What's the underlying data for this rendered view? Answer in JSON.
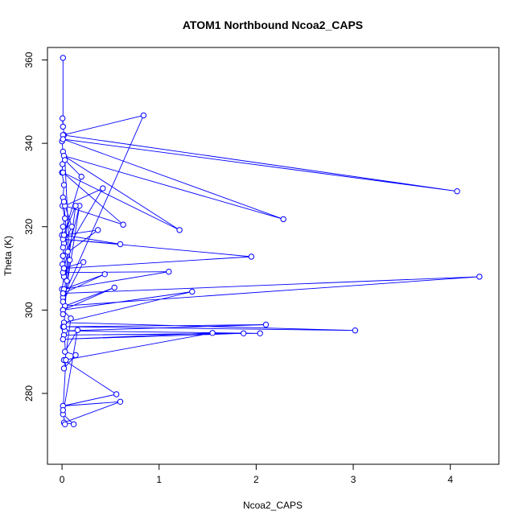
{
  "chart_data": {
    "type": "line",
    "title": "ATOM1 Northbound Ncoa2_CAPS",
    "xlabel": "Ncoa2_CAPS",
    "ylabel": "Theta (K)",
    "xlim": [
      -0.15,
      4.5
    ],
    "ylim": [
      263,
      363
    ],
    "x_ticks": [
      0,
      1,
      2,
      3,
      4
    ],
    "x_tick_labels": [
      "0",
      "1",
      "2",
      "3",
      "4"
    ],
    "y_ticks": [
      280,
      300,
      320,
      340,
      360
    ],
    "y_tick_labels": [
      "280",
      "300",
      "320",
      "340",
      "360"
    ],
    "grid": false,
    "legend": "none",
    "colors": {
      "series": "#0000ff",
      "axis": "#000000"
    },
    "series": [
      {
        "markers": "open-circle",
        "x": [
          0.01,
          0.01,
          0.005,
          0.02,
          0.0,
          0.01,
          0.005,
          0.0,
          0.02,
          0.01,
          0.005,
          0.03,
          0.01,
          0.0,
          0.02,
          0.01,
          0.005,
          0.02,
          0.0,
          0.01,
          0.84,
          0.01,
          4.07,
          0.01,
          2.28,
          0.02,
          1.21,
          0.01,
          0.63,
          0.03,
          0.42,
          0.01,
          0.37,
          0.02,
          0.6,
          0.01,
          1.95,
          0.02,
          0.01,
          1.1,
          0.02,
          0.44,
          0.01,
          4.3,
          0.03,
          0.54,
          0.01,
          1.34,
          0.02,
          3.02,
          0.01,
          2.1,
          0.03,
          2.04,
          0.02,
          1.87,
          0.01,
          1.55,
          0.02,
          0.56,
          0.01,
          0.6,
          0.02,
          0.12,
          0.01,
          0.16,
          0.03,
          0.14,
          0.02,
          0.09,
          0.01,
          0.18,
          0.02,
          0.22,
          0.01,
          0.14,
          0.02,
          0.2,
          0.03,
          0.08,
          0.01,
          0.06,
          0.02,
          0.1,
          0.01,
          0.05,
          0.02,
          0.04,
          0.01,
          0.03
        ],
        "y": [
          360.5,
          344.0,
          346.0,
          342.0,
          340.5,
          338.0,
          335.0,
          333.0,
          330.0,
          327.0,
          325.0,
          322.0,
          320.0,
          318.0,
          316.0,
          313.0,
          311.0,
          308.0,
          305.0,
          303.0,
          346.7,
          342.0,
          328.5,
          341.0,
          321.8,
          337.0,
          319.2,
          333.0,
          320.5,
          325.0,
          329.2,
          313.0,
          319.2,
          318.0,
          315.8,
          317.0,
          312.8,
          310.0,
          309.0,
          309.2,
          305.0,
          308.6,
          304.0,
          308.0,
          301.0,
          305.4,
          300.0,
          304.4,
          297.0,
          295.1,
          296.0,
          296.5,
          295.0,
          294.4,
          294.0,
          294.4,
          293.0,
          294.5,
          288.0,
          279.8,
          277.0,
          278.0,
          273.0,
          272.6,
          275.0,
          295.2,
          290.0,
          289.2,
          286.0,
          298.0,
          300.0,
          325.0,
          310.0,
          311.5,
          302.0,
          325.0,
          318.0,
          332.0,
          336.0,
          312.0,
          299.0,
          314.0,
          326.0,
          320.0,
          315.0,
          307.0,
          296.0,
          288.0,
          276.0,
          272.6
        ]
      }
    ]
  }
}
